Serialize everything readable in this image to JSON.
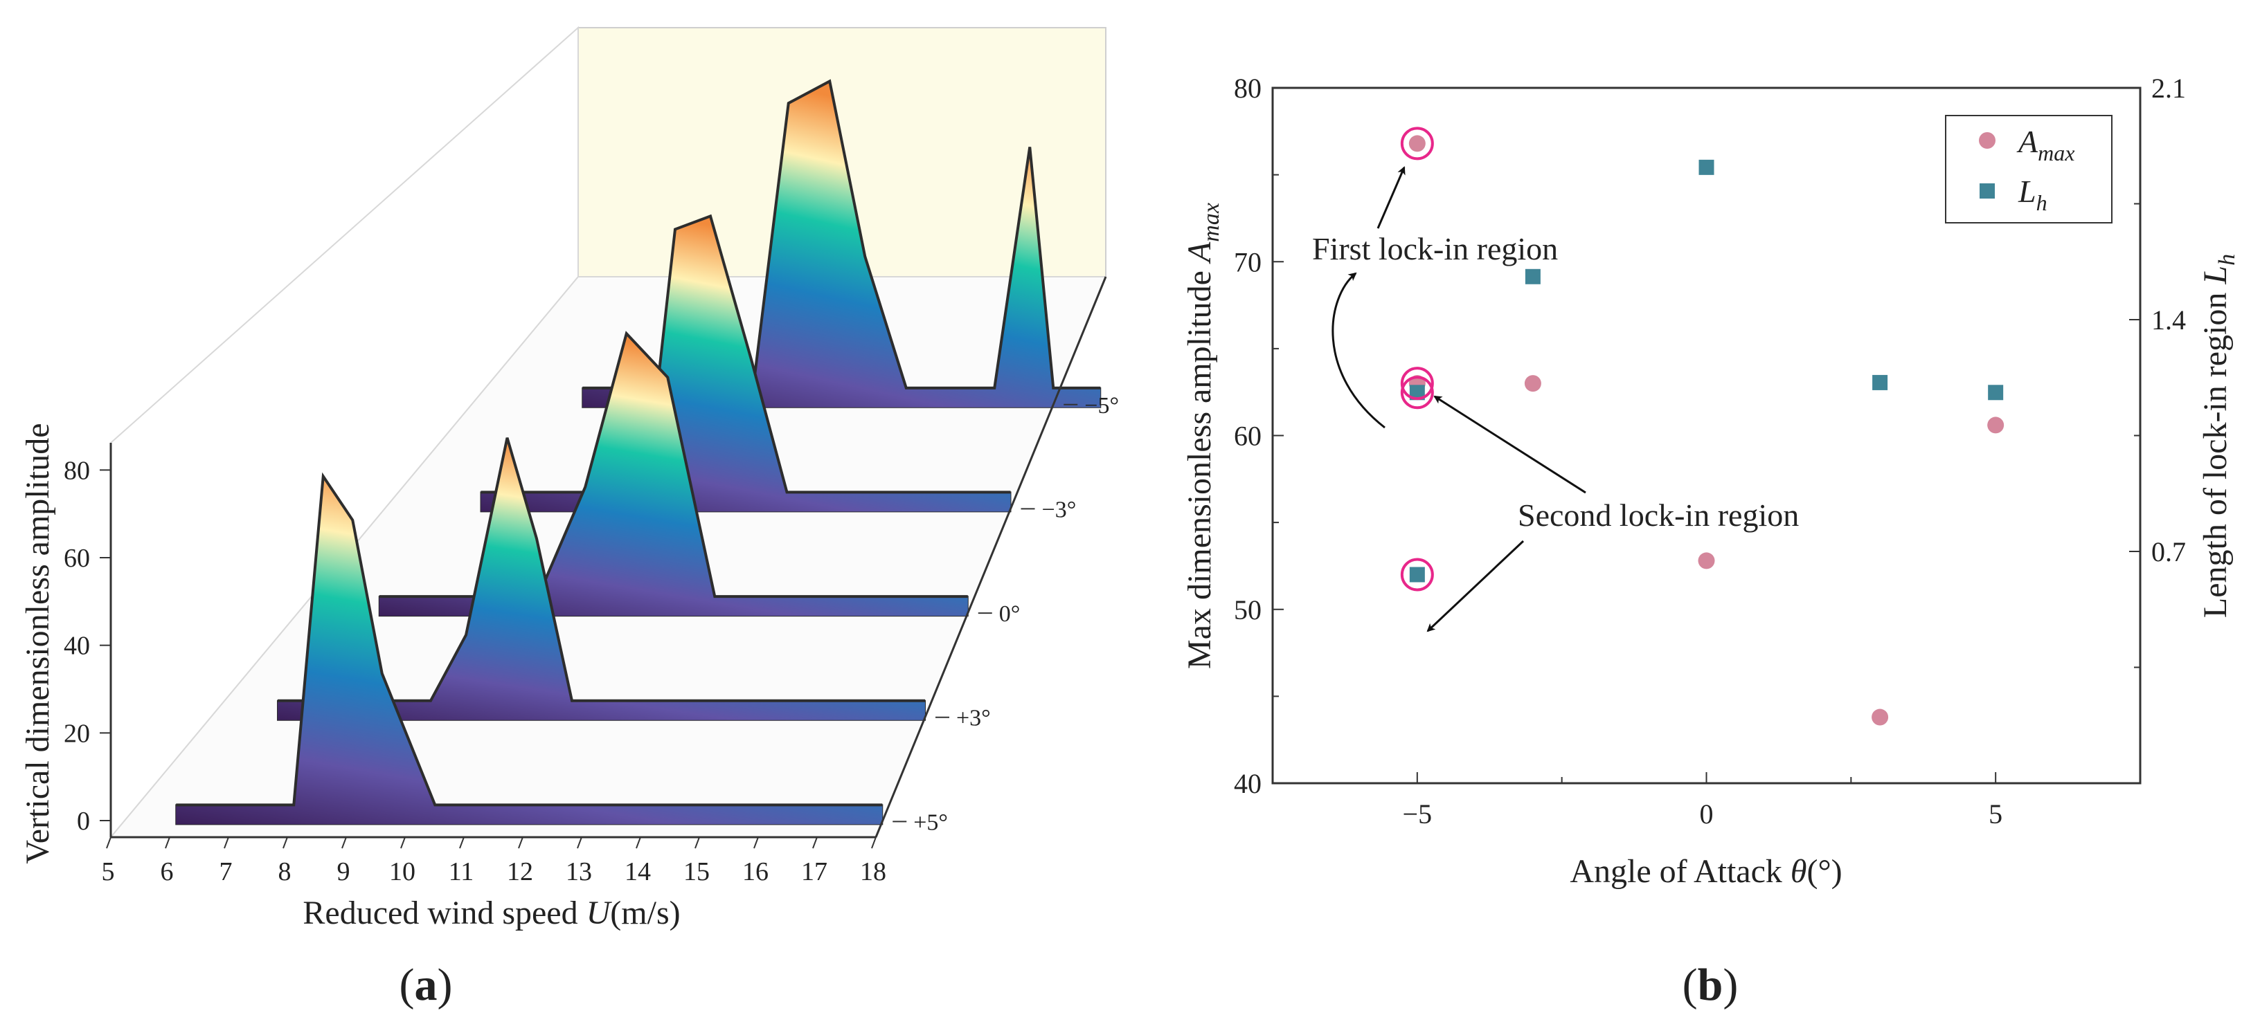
{
  "panel_a": {
    "caption": "(a)",
    "ylabel": "Vertical dimensionless amplitude",
    "xlabel_prefix": "Reduced wind speed ",
    "xlabel_var": "U",
    "xlabel_unit": "(m/s)",
    "chart_data": {
      "type": "area",
      "x_ticks": [
        "5",
        "6",
        "7",
        "8",
        "9",
        "10",
        "11",
        "12",
        "13",
        "14",
        "15",
        "16",
        "17",
        "18"
      ],
      "y_ticks": [
        "0",
        "20",
        "40",
        "60",
        "80"
      ],
      "xlim": [
        5,
        18
      ],
      "ylim": [
        0,
        90
      ],
      "series": [
        {
          "name": "+5°",
          "x": [
            6,
            8,
            8.5,
            9,
            9.5,
            10.4,
            18
          ],
          "y": [
            0,
            0,
            75,
            65,
            30,
            0,
            0
          ]
        },
        {
          "name": "+3°",
          "x": [
            7,
            9.6,
            10.2,
            10.9,
            11.4,
            12,
            18
          ],
          "y": [
            0,
            0,
            15,
            60,
            37,
            0,
            0
          ]
        },
        {
          "name": "0°",
          "x": [
            8,
            10.7,
            11.5,
            12.2,
            12.9,
            13.7,
            18
          ],
          "y": [
            0,
            0,
            25,
            60,
            50,
            0,
            0
          ]
        },
        {
          "name": "−3°",
          "x": [
            9,
            11.8,
            12.3,
            12.9,
            13.6,
            14.2,
            18
          ],
          "y": [
            0,
            0,
            60,
            63,
            30,
            0,
            0
          ]
        },
        {
          "name": "−5°",
          "x": [
            10,
            12.9,
            13.5,
            14.2,
            14.8,
            15.5,
            17,
            17.6,
            18,
            18.8
          ],
          "y": [
            0,
            0,
            65,
            70,
            30,
            0,
            0,
            55,
            0,
            0
          ]
        }
      ]
    }
  },
  "panel_b": {
    "caption": "(b)",
    "ylabel_left_prefix": "Max dimensionless amplitude ",
    "ylabel_left_var": "A",
    "ylabel_left_sub": "max",
    "ylabel_right_prefix": "Length of lock-in region ",
    "ylabel_right_var": "L",
    "ylabel_right_sub": "h",
    "xlabel_prefix": "Angle of Attack ",
    "xlabel_var": "θ",
    "xlabel_unit": "(°)",
    "annotation_first": "First lock-in region",
    "annotation_second": "Second lock-in region",
    "colors": {
      "amax": "#d4869b",
      "lh": "#3f8496",
      "highlight": "#e8278a"
    },
    "chart_data": {
      "type": "scatter",
      "xlim": [
        -7.5,
        7.5
      ],
      "ylim_left": [
        40,
        80
      ],
      "ylim_right": [
        0,
        2.1
      ],
      "x_ticks": [
        "−5",
        "0",
        "5"
      ],
      "y_ticks_left": [
        "40",
        "50",
        "60",
        "70",
        "80"
      ],
      "y_ticks_right": [
        "0.7",
        "1.4",
        "2.1"
      ],
      "legend_position": "top-right",
      "series": [
        {
          "name": "A",
          "name_sub": "max",
          "axis": "left",
          "marker": "circle",
          "x": [
            -5,
            -5,
            -3,
            0,
            3,
            5
          ],
          "y": [
            76.8,
            63.0,
            63.0,
            52.8,
            43.8,
            60.6
          ]
        },
        {
          "name": "L",
          "name_sub": "h",
          "axis": "right",
          "marker": "square",
          "x": [
            -5,
            -5,
            -3,
            0,
            3,
            5
          ],
          "y": [
            0.63,
            1.18,
            1.53,
            1.86,
            1.21,
            1.18
          ]
        }
      ]
    }
  }
}
